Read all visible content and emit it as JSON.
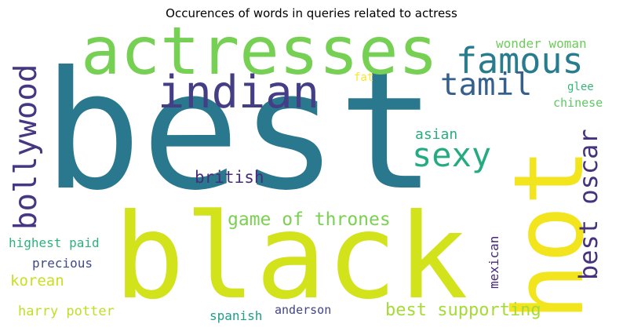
{
  "title": "Occurences of words in queries related to actress",
  "words": {
    "best": {
      "text": "best",
      "color": "#2a788e"
    },
    "black": {
      "text": "black",
      "color": "#d2e21b"
    },
    "hot": {
      "text": "hot",
      "color": "#f2e51d"
    },
    "actresses": {
      "text": "actresses",
      "color": "#75d054"
    },
    "indian": {
      "text": "indian",
      "color": "#433e85"
    },
    "famous": {
      "text": "famous",
      "color": "#287c8e"
    },
    "tamil": {
      "text": "tamil",
      "color": "#355f8d"
    },
    "bollywood": {
      "text": "bollywood",
      "color": "#453781"
    },
    "sexy": {
      "text": "sexy",
      "color": "#25ab82"
    },
    "best_oscar": {
      "text": "best oscar",
      "color": "#46327e"
    },
    "british": {
      "text": "british",
      "color": "#472d7b"
    },
    "game_of_thrones": {
      "text": "game of thrones",
      "color": "#7ad151"
    },
    "asian": {
      "text": "asian",
      "color": "#27ad81"
    },
    "wonder_woman": {
      "text": "wonder woman",
      "color": "#6ccd5a"
    },
    "fat": {
      "text": "fat",
      "color": "#fde725"
    },
    "glee": {
      "text": "glee",
      "color": "#35b779"
    },
    "chinese": {
      "text": "chinese",
      "color": "#5ec962"
    },
    "best_supporting": {
      "text": "best supporting",
      "color": "#a5db36"
    },
    "highest_paid": {
      "text": "highest paid",
      "color": "#2db27d"
    },
    "precious": {
      "text": "precious",
      "color": "#3e4a89"
    },
    "korean": {
      "text": "korean",
      "color": "#c8e020"
    },
    "harry_potter": {
      "text": "harry potter",
      "color": "#bddf26"
    },
    "spanish": {
      "text": "spanish",
      "color": "#1f9e89"
    },
    "anderson": {
      "text": "anderson",
      "color": "#414487"
    },
    "mexican": {
      "text": "mexican",
      "color": "#482878"
    }
  }
}
